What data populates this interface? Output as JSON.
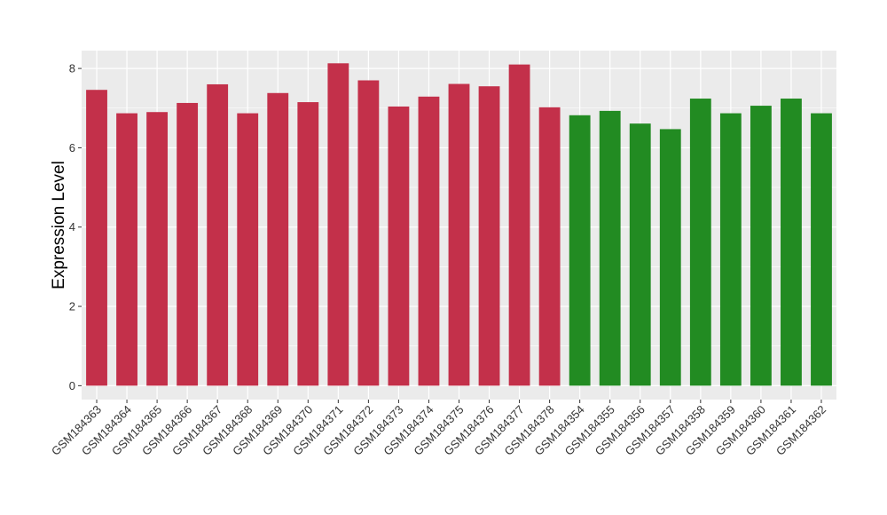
{
  "chart_data": {
    "type": "bar",
    "ylabel": "Expression Level",
    "xlabel": "",
    "ylim": [
      -0.35,
      8.45
    ],
    "yticks": [
      0,
      2,
      4,
      6,
      8
    ],
    "grid": true,
    "colors": {
      "group1": "#C3304A",
      "group2": "#228B22",
      "panel": "#EBEBEB",
      "grid": "#FFFFFF"
    },
    "categories": [
      "GSM184363",
      "GSM184364",
      "GSM184365",
      "GSM184366",
      "GSM184367",
      "GSM184368",
      "GSM184369",
      "GSM184370",
      "GSM184371",
      "GSM184372",
      "GSM184373",
      "GSM184374",
      "GSM184375",
      "GSM184376",
      "GSM184377",
      "GSM184378",
      "GSM184354",
      "GSM184355",
      "GSM184356",
      "GSM184357",
      "GSM184358",
      "GSM184359",
      "GSM184360",
      "GSM184361",
      "GSM184362"
    ],
    "values": [
      7.46,
      6.87,
      6.9,
      7.13,
      7.6,
      6.87,
      7.38,
      7.15,
      8.13,
      7.7,
      7.04,
      7.29,
      7.61,
      7.55,
      8.1,
      7.02,
      6.82,
      6.93,
      6.61,
      6.47,
      7.24,
      6.87,
      7.06,
      7.24,
      6.87
    ],
    "groups": [
      "group1",
      "group1",
      "group1",
      "group1",
      "group1",
      "group1",
      "group1",
      "group1",
      "group1",
      "group1",
      "group1",
      "group1",
      "group1",
      "group1",
      "group1",
      "group1",
      "group2",
      "group2",
      "group2",
      "group2",
      "group2",
      "group2",
      "group2",
      "group2",
      "group2"
    ]
  }
}
